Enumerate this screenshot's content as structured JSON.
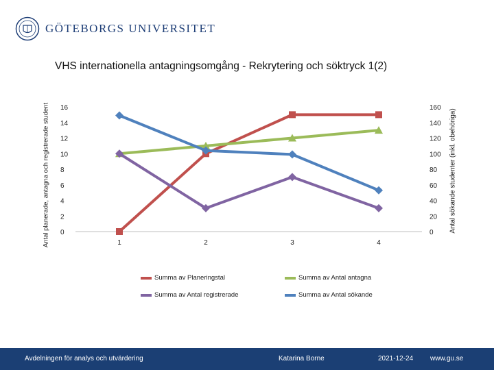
{
  "header": {
    "logo_text": "GÖTEBORGS UNIVERSITET"
  },
  "chart_data": {
    "type": "line",
    "title": "VHS internationella antagningsomgång - Rekrytering och söktryck 1(2)",
    "xlabel": "",
    "ylabel_left": "Antal planerade, antagna och registrerade student",
    "ylabel_right": "Antal sökande studenter (inkl. obehöriga)",
    "categories": [
      "1",
      "2",
      "3",
      "4"
    ],
    "ylim_left": [
      0,
      16
    ],
    "ylim_right": [
      0,
      160
    ],
    "yticks_left": [
      0,
      2,
      4,
      6,
      8,
      10,
      12,
      14,
      16
    ],
    "yticks_right": [
      0,
      20,
      40,
      60,
      80,
      100,
      120,
      140,
      160
    ],
    "grid": false,
    "legend_position": "bottom",
    "series": [
      {
        "name": "Summa av Planeringstal",
        "axis": "left",
        "color": "#c0504d",
        "marker": "square",
        "values": [
          0,
          10,
          15,
          15
        ]
      },
      {
        "name": "Summa av Antal antagna",
        "axis": "left",
        "color": "#9bbb59",
        "marker": "triangle",
        "values": [
          10,
          11,
          12,
          13
        ]
      },
      {
        "name": "Summa av Antal registrerade",
        "axis": "left",
        "color": "#8064a2",
        "marker": "diamond",
        "values": [
          10,
          3,
          7,
          3
        ]
      },
      {
        "name": "Summa av Antal sökande",
        "axis": "right",
        "color": "#4f81bd",
        "marker": "diamond",
        "values": [
          149,
          104,
          99,
          53
        ]
      }
    ]
  },
  "footer": {
    "department": "Avdelningen för analys och utvärdering",
    "author": "Katarina Borne",
    "date": "2021-12-24",
    "website": "www.gu.se"
  }
}
